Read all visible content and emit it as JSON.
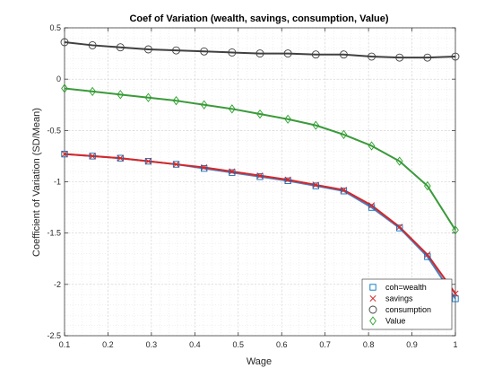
{
  "chart_data": {
    "type": "line",
    "title": "Coef of Variation (wealth, savings, consumption, Value)",
    "xlabel": "Wage",
    "ylabel": "Coefficient of Variation (SD/Mean)",
    "xlim": [
      0.1,
      1.0
    ],
    "ylim": [
      -2.5,
      0.5
    ],
    "xticks": [
      0.1,
      0.2,
      0.3,
      0.4,
      0.5,
      0.6,
      0.7,
      0.8,
      0.9,
      1
    ],
    "xtick_labels": [
      "0.1",
      "0.2",
      "0.3",
      "0.4",
      "0.5",
      "0.6",
      "0.7",
      "0.8",
      "0.9",
      "1"
    ],
    "yticks": [
      -2.5,
      -2,
      -1.5,
      -1,
      -0.5,
      0,
      0.5
    ],
    "ytick_labels": [
      "-2.5",
      "-2",
      "-1.5",
      "-1",
      "-0.5",
      "0",
      "0.5"
    ],
    "grid": true,
    "minor_grid": true,
    "legend_position": "bottom-right",
    "x": [
      0.1,
      0.1643,
      0.2286,
      0.2929,
      0.3571,
      0.4214,
      0.4857,
      0.55,
      0.6143,
      0.6786,
      0.7429,
      0.8071,
      0.8714,
      0.9357,
      1.0
    ],
    "series": [
      {
        "name": "coh=wealth",
        "marker": "square",
        "color": "#0072bd",
        "line_color": "#4a7fbf",
        "values": [
          -0.73,
          -0.75,
          -0.77,
          -0.8,
          -0.83,
          -0.87,
          -0.91,
          -0.95,
          -0.99,
          -1.04,
          -1.09,
          -1.25,
          -1.45,
          -1.73,
          -2.14
        ]
      },
      {
        "name": "savings",
        "marker": "x",
        "color": "#d62728",
        "line_color": "#d62728",
        "values": [
          -0.73,
          -0.75,
          -0.77,
          -0.8,
          -0.83,
          -0.86,
          -0.9,
          -0.94,
          -0.98,
          -1.03,
          -1.08,
          -1.23,
          -1.44,
          -1.71,
          -2.09
        ]
      },
      {
        "name": "consumption",
        "marker": "circle",
        "color": "#404040",
        "line_color": "#404040",
        "values": [
          0.36,
          0.33,
          0.31,
          0.29,
          0.28,
          0.27,
          0.26,
          0.25,
          0.25,
          0.24,
          0.24,
          0.22,
          0.21,
          0.21,
          0.22
        ]
      },
      {
        "name": "Value",
        "marker": "diamond",
        "color": "#2ca02c",
        "line_color": "#3a9a3a",
        "values": [
          -0.09,
          -0.12,
          -0.15,
          -0.18,
          -0.21,
          -0.25,
          -0.29,
          -0.34,
          -0.39,
          -0.45,
          -0.54,
          -0.65,
          -0.8,
          -1.04,
          -1.47
        ]
      }
    ]
  }
}
